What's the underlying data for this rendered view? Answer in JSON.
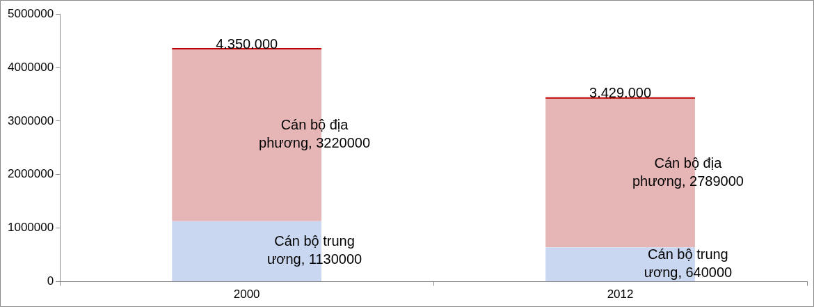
{
  "chart_data": {
    "type": "bar",
    "stacked": true,
    "categories": [
      "2000",
      "2012"
    ],
    "series": [
      {
        "color": "#c9d8f0",
        "values": [
          1130000,
          640000
        ],
        "value_labels": [
          "Cán bộ trung ương, 1130000",
          "Cán bộ trung ương, 640000"
        ]
      },
      {
        "color": "#e6b6b6",
        "values": [
          3220000,
          2789000
        ],
        "value_labels": [
          "Cán bộ địa phương, 3220000",
          "Cán bộ địa phương, 2789000"
        ]
      }
    ],
    "totals": [
      "4.350.000",
      "3.429.000"
    ],
    "ylim": [
      0,
      5000000
    ],
    "yticks": [
      0,
      1000000,
      2000000,
      3000000,
      4000000,
      5000000
    ],
    "grid": false,
    "legend": false
  }
}
